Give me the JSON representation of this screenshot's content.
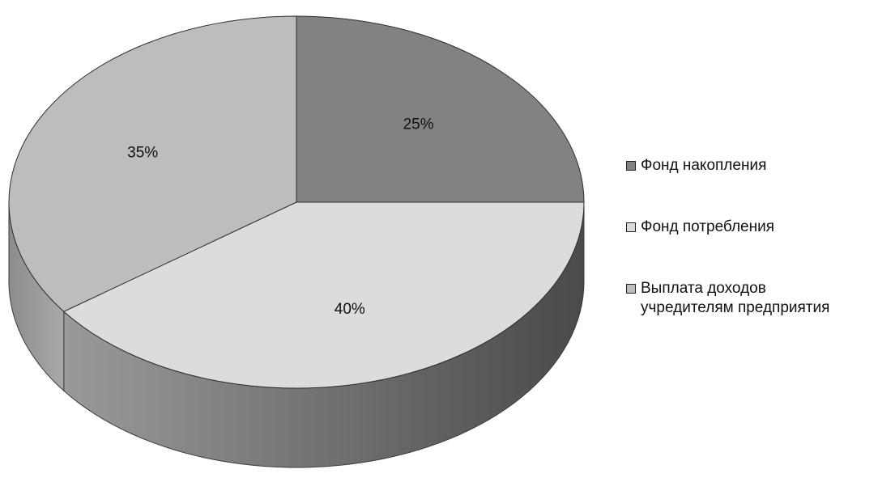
{
  "chart_data": {
    "type": "pie",
    "style": "3d",
    "title": "",
    "legend_position": "right",
    "slices": [
      {
        "name": "Фонд накопления",
        "value": 25,
        "label": "25%",
        "color": "#828282"
      },
      {
        "name": "Фонд потребления",
        "value": 40,
        "label": "40%",
        "color": "#dcdcdc"
      },
      {
        "name": "Выплата доходов\nучредителям предприятия",
        "value": 35,
        "label": "35%",
        "color": "#bdbdbd"
      }
    ]
  }
}
